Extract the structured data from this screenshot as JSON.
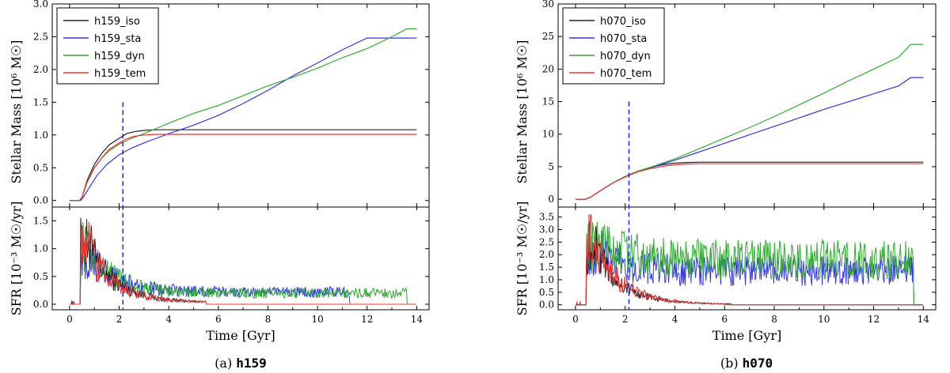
{
  "figures": [
    {
      "caption_prefix": "(a)",
      "caption_name": "h159",
      "top": {
        "ylabel": "Stellar Mass [10⁶ M☉]",
        "ylim": [
          -0.1,
          3.0
        ],
        "yticks": [
          "0.0",
          "0.5",
          "1.0",
          "1.5",
          "2.0",
          "2.5",
          "3.0"
        ]
      },
      "bottom": {
        "ylabel": "SFR [10⁻³ M☉/yr]",
        "ylim": [
          -0.1,
          1.75
        ],
        "yticks": [
          "0.0",
          "0.5",
          "1.0",
          "1.5"
        ]
      },
      "xlabel": "Time [Gyr]",
      "xlim": [
        -0.7,
        14.5
      ],
      "xticks": [
        "0",
        "2",
        "4",
        "6",
        "8",
        "10",
        "12",
        "14"
      ],
      "vline_x": 2.15,
      "legend": [
        "h159_iso",
        "h159_sta",
        "h159_dyn",
        "h159_tem"
      ]
    },
    {
      "caption_prefix": "(b)",
      "caption_name": "h070",
      "top": {
        "ylabel": "Stellar Mass [10⁶ M☉]",
        "ylim": [
          -1.2,
          30
        ],
        "yticks": [
          "0",
          "5",
          "10",
          "15",
          "20",
          "25",
          "30"
        ]
      },
      "bottom": {
        "ylabel": "SFR [10⁻³ M☉/yr]",
        "ylim": [
          -0.2,
          3.9
        ],
        "yticks": [
          "0.0",
          "0.5",
          "1.0",
          "1.5",
          "2.0",
          "2.5",
          "3.0",
          "3.5"
        ]
      },
      "xlabel": "Time [Gyr]",
      "xlim": [
        -0.7,
        14.5
      ],
      "xticks": [
        "0",
        "2",
        "4",
        "6",
        "8",
        "10",
        "12",
        "14"
      ],
      "vline_x": 2.15,
      "legend": [
        "h070_iso",
        "h070_sta",
        "h070_dyn",
        "h070_tem"
      ]
    }
  ],
  "colors": {
    "iso": "#222222",
    "sta": "#3333ee",
    "dyn": "#33aa33",
    "tem": "#ee3333",
    "vline": "#2222ff"
  },
  "chart_data": [
    {
      "type": "line",
      "title": "",
      "xlabel": "Time [Gyr]",
      "ylabel": "Stellar Mass [10⁶ M☉]",
      "xlim": [
        -0.7,
        14.5
      ],
      "ylim": [
        -0.1,
        3.0
      ],
      "series": [
        {
          "name": "h159_iso",
          "x": [
            0,
            0.4,
            0.5,
            0.7,
            1.0,
            1.3,
            1.6,
            2.0,
            2.3,
            2.6,
            3.0,
            3.5,
            4,
            6,
            8,
            10,
            12,
            14
          ],
          "y": [
            0,
            0,
            0.05,
            0.3,
            0.55,
            0.72,
            0.85,
            0.95,
            1.02,
            1.05,
            1.07,
            1.08,
            1.08,
            1.08,
            1.08,
            1.08,
            1.08,
            1.08
          ]
        },
        {
          "name": "h159_sta",
          "x": [
            0,
            0.45,
            0.55,
            0.8,
            1.1,
            1.5,
            2.0,
            2.5,
            3.0,
            3.5,
            4.0,
            5,
            6,
            7,
            8,
            9,
            10,
            11,
            12,
            12.5,
            13,
            14
          ],
          "y": [
            0,
            0,
            0.05,
            0.2,
            0.38,
            0.55,
            0.7,
            0.8,
            0.88,
            0.95,
            1.02,
            1.15,
            1.3,
            1.48,
            1.68,
            1.9,
            2.1,
            2.3,
            2.48,
            2.48,
            2.48,
            2.48
          ]
        },
        {
          "name": "h159_dyn",
          "x": [
            0,
            0.4,
            0.5,
            0.7,
            1.0,
            1.3,
            1.6,
            2.0,
            2.5,
            3.0,
            3.5,
            4,
            5,
            6,
            7,
            8,
            9,
            10,
            11,
            12,
            13,
            13.6,
            14
          ],
          "y": [
            0,
            0,
            0.05,
            0.28,
            0.5,
            0.65,
            0.76,
            0.86,
            0.95,
            1.02,
            1.1,
            1.18,
            1.33,
            1.45,
            1.6,
            1.75,
            1.88,
            2.02,
            2.18,
            2.32,
            2.5,
            2.62,
            2.62
          ]
        },
        {
          "name": "h159_tem",
          "x": [
            0,
            0.4,
            0.5,
            0.7,
            1.0,
            1.3,
            1.6,
            2.0,
            2.3,
            2.6,
            3.0,
            3.5,
            4,
            6,
            8,
            10,
            12,
            14
          ],
          "y": [
            0,
            0,
            0.05,
            0.27,
            0.5,
            0.65,
            0.78,
            0.88,
            0.94,
            0.98,
            1.0,
            1.01,
            1.01,
            1.01,
            1.01,
            1.01,
            1.01,
            1.01
          ]
        }
      ],
      "sfr_series": [
        {
          "name": "h159_iso",
          "end": 5.5,
          "peak": 1.6,
          "tail": 0.03
        },
        {
          "name": "h159_sta",
          "end": 11.3,
          "peak": 1.3,
          "tail": 0.22
        },
        {
          "name": "h159_dyn",
          "end": 13.6,
          "peak": 1.5,
          "tail": 0.2
        },
        {
          "name": "h159_tem",
          "end": 5.5,
          "peak": 1.5,
          "tail": 0.03
        }
      ]
    },
    {
      "type": "line",
      "title": "",
      "xlabel": "Time [Gyr]",
      "ylabel": "Stellar Mass [10⁶ M☉]",
      "xlim": [
        -0.7,
        14.5
      ],
      "ylim": [
        -1.2,
        30
      ],
      "series": [
        {
          "name": "h070_iso",
          "x": [
            0,
            0.4,
            0.6,
            1.0,
            1.5,
            2.0,
            2.5,
            3.0,
            3.5,
            4.0,
            4.5,
            5,
            6,
            8,
            10,
            12,
            14
          ],
          "y": [
            0,
            0,
            0.3,
            1.3,
            2.5,
            3.5,
            4.3,
            4.9,
            5.3,
            5.55,
            5.65,
            5.7,
            5.7,
            5.7,
            5.7,
            5.7,
            5.7
          ]
        },
        {
          "name": "h070_sta",
          "x": [
            0,
            0.4,
            0.6,
            1.0,
            1.5,
            2.0,
            2.5,
            3.0,
            4,
            5,
            6,
            7,
            8,
            9,
            10,
            11,
            12,
            13,
            13.5,
            14
          ],
          "y": [
            0,
            0,
            0.3,
            1.3,
            2.5,
            3.5,
            4.2,
            4.8,
            6.0,
            7.3,
            8.6,
            9.9,
            11.2,
            12.5,
            13.8,
            15.0,
            16.2,
            17.4,
            18.7,
            18.7
          ]
        },
        {
          "name": "h070_dyn",
          "x": [
            0,
            0.4,
            0.6,
            1.0,
            1.5,
            2.0,
            2.5,
            3.0,
            4,
            5,
            6,
            7,
            8,
            9,
            10,
            11,
            12,
            13,
            13.5,
            14
          ],
          "y": [
            0,
            0,
            0.3,
            1.3,
            2.5,
            3.5,
            4.3,
            4.9,
            6.2,
            7.8,
            9.4,
            11.0,
            12.7,
            14.5,
            16.3,
            18.2,
            20.0,
            21.8,
            23.8,
            23.8
          ]
        },
        {
          "name": "h070_tem",
          "x": [
            0,
            0.4,
            0.6,
            1.0,
            1.5,
            2.0,
            2.5,
            3.0,
            3.5,
            4.0,
            4.5,
            5,
            6,
            8,
            10,
            12,
            14
          ],
          "y": [
            0,
            0,
            0.3,
            1.3,
            2.5,
            3.4,
            4.2,
            4.7,
            5.05,
            5.3,
            5.4,
            5.45,
            5.45,
            5.45,
            5.45,
            5.45,
            5.45
          ]
        }
      ],
      "sfr_series": [
        {
          "name": "h070_iso",
          "end": 6.3,
          "peak": 3.4,
          "tail": 0.02
        },
        {
          "name": "h070_sta",
          "end": 13.6,
          "peak": 3.2,
          "tail": 1.35
        },
        {
          "name": "h070_dyn",
          "end": 13.6,
          "peak": 3.5,
          "tail": 1.8
        },
        {
          "name": "h070_tem",
          "end": 6.0,
          "peak": 3.7,
          "tail": 0.02
        }
      ]
    }
  ]
}
